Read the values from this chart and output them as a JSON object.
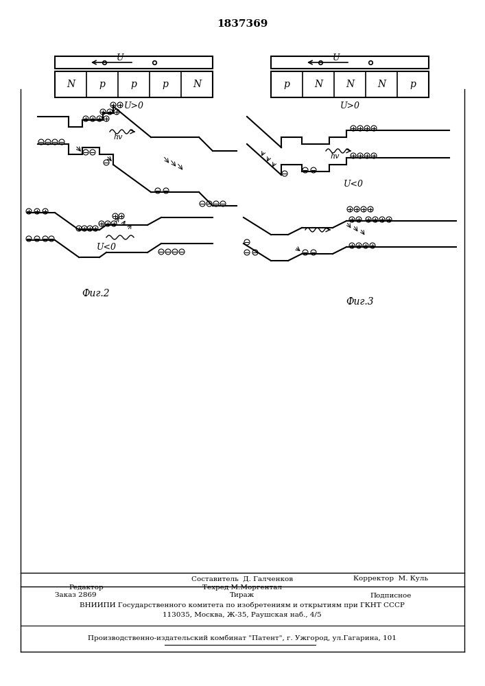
{
  "title": "1837369",
  "bg_color": "#ffffff",
  "border_color": "#000000",
  "footer_line1": "Составитель  Д. Галченков",
  "footer_editor": "Редактор",
  "footer_techred": "Техред М.Моргентал",
  "footer_corrector": "Корректор  М. Куль",
  "footer_order": "Заказ 2869",
  "footer_tirazh": "Тираж",
  "footer_podpisnoe": "Подписное",
  "footer_vniiipi": "ВНИИПИ Государственного комитета по изобретениям и открытиям при ГКНТ СССР",
  "footer_address": "113035, Москва, Ж-35, Раушская наб., 4/5",
  "footer_publisher": "Производственно-издательский комбинат \"Патент\", г. Ужгород, ул.Гагарина, 101",
  "fig2_label": "Фиг.2",
  "fig3_label": "Фиг.3"
}
